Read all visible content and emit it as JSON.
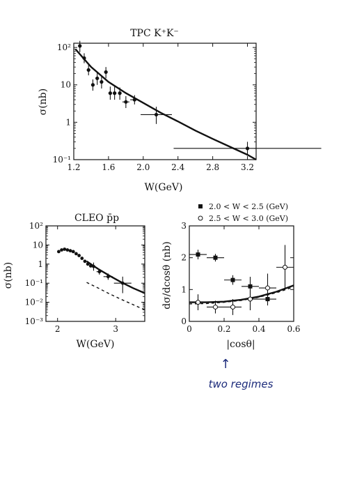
{
  "annotation": {
    "arrow": "↑",
    "text": "two regimes"
  },
  "chart_data": [
    {
      "type": "scatter",
      "title": "TPC K⁺K⁻",
      "xlabel": "W(GeV)",
      "ylabel": "σ(nb)",
      "xlim": [
        1.2,
        3.3
      ],
      "ylim": [
        0.1,
        130
      ],
      "yscale": "log",
      "xticks": [
        "1.2",
        "1.6",
        "2.0",
        "2.4",
        "2.8",
        "3.2"
      ],
      "yticks": [
        "10⁻¹",
        "1",
        "10",
        "10²"
      ],
      "series": [
        {
          "points": [
            {
              "x": 1.27,
              "y": 110,
              "xerr": 0.02,
              "ylo": 75,
              "yhi": 150
            },
            {
              "x": 1.32,
              "y": 52,
              "xerr": 0.02,
              "ylo": 38,
              "yhi": 70
            },
            {
              "x": 1.37,
              "y": 25,
              "xerr": 0.02,
              "ylo": 18,
              "yhi": 34
            },
            {
              "x": 1.42,
              "y": 10,
              "xerr": 0.02,
              "ylo": 7,
              "yhi": 14
            },
            {
              "x": 1.47,
              "y": 15,
              "xerr": 0.02,
              "ylo": 10,
              "yhi": 22
            },
            {
              "x": 1.52,
              "y": 12,
              "xerr": 0.02,
              "ylo": 8,
              "yhi": 18
            },
            {
              "x": 1.57,
              "y": 22,
              "xerr": 0.02,
              "ylo": 15,
              "yhi": 30
            },
            {
              "x": 1.62,
              "y": 6,
              "xerr": 0.02,
              "ylo": 4,
              "yhi": 9
            },
            {
              "x": 1.67,
              "y": 6,
              "xerr": 0.02,
              "ylo": 4,
              "yhi": 9
            },
            {
              "x": 1.73,
              "y": 6,
              "xerr": 0.02,
              "ylo": 4,
              "yhi": 8.5
            },
            {
              "x": 1.8,
              "y": 3.5,
              "xerr": 0.04,
              "ylo": 2.4,
              "yhi": 5
            },
            {
              "x": 1.9,
              "y": 4,
              "xerr": 0.05,
              "ylo": 3,
              "yhi": 5.3
            },
            {
              "x": 2.15,
              "y": 1.6,
              "xerr": 0.18,
              "ylo": 0.9,
              "yhi": 2.6
            },
            {
              "x": 3.2,
              "y": 0.2,
              "xerr": 0.85,
              "ylo": 0.13,
              "yhi": 0.3
            }
          ]
        }
      ],
      "curve": {
        "x": [
          1.22,
          1.4,
          1.6,
          1.8,
          2.0,
          2.2,
          2.4,
          2.6,
          2.8,
          3.0,
          3.2,
          3.3
        ],
        "y": [
          90,
          30,
          12,
          6,
          3.3,
          1.8,
          1.05,
          0.6,
          0.36,
          0.22,
          0.135,
          0.1
        ]
      }
    },
    {
      "type": "scatter",
      "title": "CLEO p̄p",
      "xlabel": "W(GeV)",
      "ylabel": "σ(nb)",
      "xlim": [
        1.8,
        3.5
      ],
      "ylim": [
        0.001,
        100
      ],
      "yscale": "log",
      "xticks": [
        "2",
        "3"
      ],
      "yticks": [
        "10⁻³",
        "10⁻²",
        "10⁻¹",
        "1",
        "10",
        "10²"
      ],
      "series": [
        {
          "points": [
            {
              "x": 2.02,
              "y": 4.5
            },
            {
              "x": 2.07,
              "y": 5.5
            },
            {
              "x": 2.12,
              "y": 6.0
            },
            {
              "x": 2.17,
              "y": 5.5
            },
            {
              "x": 2.22,
              "y": 5.0
            },
            {
              "x": 2.27,
              "y": 4.5
            },
            {
              "x": 2.32,
              "y": 3.5
            },
            {
              "x": 2.37,
              "y": 2.8
            },
            {
              "x": 2.42,
              "y": 2.0
            },
            {
              "x": 2.47,
              "y": 1.4
            },
            {
              "x": 2.52,
              "y": 1.0
            },
            {
              "x": 2.57,
              "y": 0.8
            }
          ]
        },
        {
          "points": [
            {
              "x": 2.62,
              "y": 0.75,
              "xerr": 0.03,
              "ylo": 0.45,
              "yhi": 1.2
            },
            {
              "x": 2.72,
              "y": 0.4,
              "xerr": 0.05,
              "ylo": 0.28,
              "yhi": 0.55
            },
            {
              "x": 2.87,
              "y": 0.22,
              "xerr": 0.08,
              "ylo": 0.15,
              "yhi": 0.32
            },
            {
              "x": 3.12,
              "y": 0.1,
              "xerr": 0.15,
              "ylo": 0.03,
              "yhi": 0.22
            }
          ]
        }
      ],
      "curve_solid": {
        "x": [
          2.5,
          2.7,
          2.9,
          3.1,
          3.3,
          3.5
        ],
        "y": [
          1.4,
          0.55,
          0.24,
          0.11,
          0.055,
          0.03
        ]
      },
      "curve_dashed": {
        "x": [
          2.5,
          2.7,
          2.9,
          3.1,
          3.3,
          3.5
        ],
        "y": [
          0.11,
          0.055,
          0.027,
          0.014,
          0.0075,
          0.004
        ]
      }
    },
    {
      "type": "scatter",
      "xlabel": "|cosθ|",
      "ylabel": "dσ/dcosθ (nb)",
      "xlim": [
        0,
        0.6
      ],
      "ylim": [
        0,
        3
      ],
      "xticks": [
        "0",
        "0.2",
        "0.4",
        "0.6"
      ],
      "yticks": [
        "0",
        "1",
        "2",
        "3"
      ],
      "legend_position": "top",
      "series": [
        {
          "name": "2.0 < W < 2.5 (GeV)",
          "marker": "filled-square",
          "points": [
            {
              "x": 0.05,
              "y": 2.1,
              "xerr": 0.05,
              "yerr": 0.15
            },
            {
              "x": 0.15,
              "y": 2.0,
              "xerr": 0.05,
              "yerr": 0.12
            },
            {
              "x": 0.25,
              "y": 1.3,
              "xerr": 0.05,
              "yerr": 0.15
            },
            {
              "x": 0.35,
              "y": 1.1,
              "xerr": 0.05,
              "yerr": 0.3
            },
            {
              "x": 0.45,
              "y": 0.7,
              "xerr": 0.05,
              "yerr": 0.2
            }
          ]
        },
        {
          "name": "2.5 < W < 3.0 (GeV)",
          "marker": "open-circle",
          "points": [
            {
              "x": 0.05,
              "y": 0.6,
              "xerr": 0.05,
              "yerr": 0.25
            },
            {
              "x": 0.15,
              "y": 0.45,
              "xerr": 0.05,
              "yerr": 0.2
            },
            {
              "x": 0.25,
              "y": 0.45,
              "xerr": 0.05,
              "yerr": 0.25
            },
            {
              "x": 0.35,
              "y": 0.7,
              "xerr": 0.05,
              "yerr": 0.35
            },
            {
              "x": 0.45,
              "y": 1.05,
              "xerr": 0.05,
              "yerr": 0.45
            },
            {
              "x": 0.55,
              "y": 1.7,
              "xerr": 0.05,
              "yerr": 0.7
            }
          ]
        }
      ],
      "curve_solid": {
        "x": [
          0,
          0.1,
          0.2,
          0.3,
          0.4,
          0.5,
          0.6
        ],
        "y": [
          0.6,
          0.6,
          0.62,
          0.68,
          0.78,
          0.93,
          1.13
        ]
      },
      "curve_dashed": {
        "x": [
          0,
          0.1,
          0.2,
          0.3,
          0.4,
          0.5,
          0.6
        ],
        "y": [
          0.55,
          0.56,
          0.6,
          0.66,
          0.76,
          0.9,
          1.08
        ]
      }
    }
  ]
}
